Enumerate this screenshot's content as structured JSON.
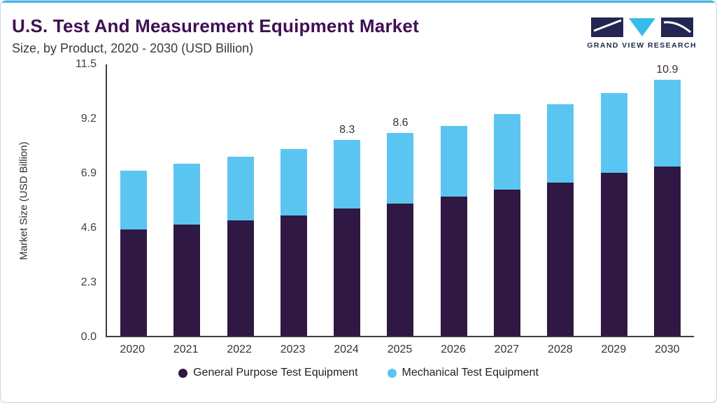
{
  "header": {
    "title": "U.S. Test And Measurement Equipment Market",
    "subtitle": "Size, by Product, 2020 - 2030 (USD Billion)",
    "brand": "GRAND VIEW RESEARCH"
  },
  "colors": {
    "accent_line": "#3fb9e6",
    "title_text": "#3e1052",
    "axis": "#3d3d3d",
    "logo_dark": "#232650",
    "logo_cyan": "#35bde8"
  },
  "chart_data": {
    "type": "bar",
    "stacked": true,
    "title": "U.S. Test And Measurement Equipment Market Size, by Product, 2020 - 2030 (USD Billion)",
    "categories": [
      "2020",
      "2021",
      "2022",
      "2023",
      "2024",
      "2025",
      "2026",
      "2027",
      "2028",
      "2029",
      "2030"
    ],
    "series": [
      {
        "name": "General Purpose Test Equipment",
        "color": "#2f1843",
        "values": [
          4.5,
          4.7,
          4.9,
          5.1,
          5.4,
          5.6,
          5.9,
          6.2,
          6.5,
          6.9,
          7.2
        ]
      },
      {
        "name": "Mechanical Test Equipment",
        "color": "#5bc5f2",
        "values": [
          2.5,
          2.6,
          2.7,
          2.8,
          2.9,
          3.0,
          3.0,
          3.2,
          3.3,
          3.4,
          3.7
        ]
      }
    ],
    "totals": [
      7.0,
      7.3,
      7.6,
      7.9,
      8.3,
      8.6,
      8.9,
      9.4,
      9.8,
      10.3,
      10.9
    ],
    "data_labels": [
      "",
      "",
      "",
      "",
      "8.3",
      "8.6",
      "",
      "",
      "",
      "",
      "10.9"
    ],
    "xlabel": "",
    "ylabel": "Market Size (USD Billion)",
    "yticks": [
      "11.5",
      "9.2",
      "6.9",
      "4.6",
      "2.3",
      "0.0"
    ],
    "ylim": [
      0,
      11.5
    ],
    "grid": false,
    "legend_position": "bottom"
  }
}
